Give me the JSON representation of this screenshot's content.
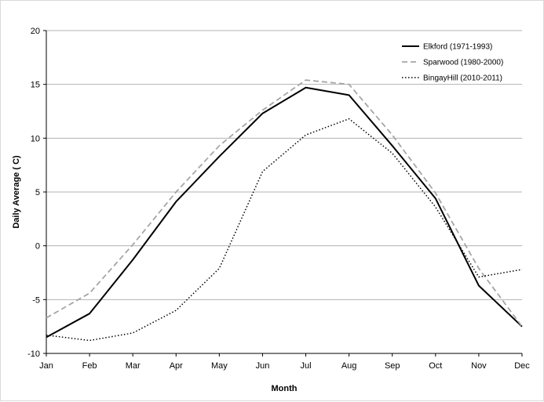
{
  "chart_data": {
    "type": "line",
    "title": "",
    "xlabel": "Month",
    "ylabel": "Daily Average ( C)",
    "ylim": [
      -10,
      20
    ],
    "ytick_step": 5,
    "grid": "horizontal",
    "legend_position": "top-right",
    "categories": [
      "Jan",
      "Feb",
      "Mar",
      "Apr",
      "May",
      "Jun",
      "Jul",
      "Aug",
      "Sep",
      "Oct",
      "Nov",
      "Dec"
    ],
    "series": [
      {
        "name": "Elkford (1971-1993)",
        "color": "#000000",
        "style": "solid",
        "values": [
          -8.5,
          -6.3,
          -1.3,
          4.1,
          8.3,
          12.3,
          14.7,
          14.0,
          9.3,
          4.4,
          -3.7,
          -7.5
        ]
      },
      {
        "name": "Sparwood (1980-2000)",
        "color": "#a6a6a6",
        "style": "dashed",
        "values": [
          -6.7,
          -4.4,
          0.1,
          5.0,
          9.3,
          12.6,
          15.4,
          15.0,
          10.3,
          4.9,
          -2.1,
          -7.5
        ]
      },
      {
        "name": "BingayHill (2010-2011)",
        "color": "#000000",
        "style": "dotted",
        "values": [
          -8.3,
          -8.8,
          -8.1,
          -6.0,
          -2.1,
          6.9,
          10.3,
          11.8,
          8.6,
          3.6,
          -2.9,
          -2.2
        ]
      }
    ]
  }
}
